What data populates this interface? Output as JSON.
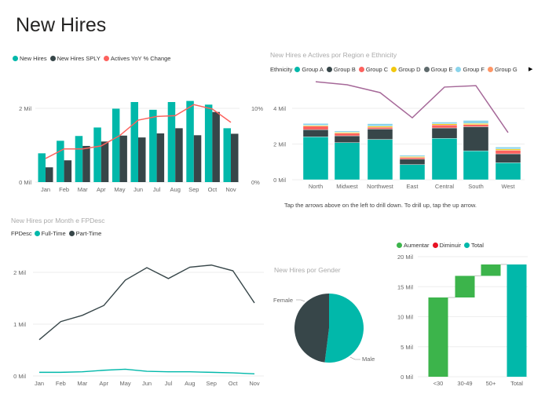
{
  "page_title": "New Hires",
  "colors": {
    "teal": "#01B8AA",
    "dark": "#374649",
    "red": "#FD625E",
    "yellow": "#F2C80F",
    "gray": "#5F6B6D",
    "lightblue": "#8AD4EB",
    "orange": "#FE9666",
    "purple": "#A66999",
    "green": "#3CB44B",
    "decrease": "#E81123"
  },
  "chart_data": [
    {
      "type": "bar",
      "title": "",
      "legend": [
        "New Hires",
        "New Hires SPLY",
        "Actives YoY % Change"
      ],
      "categories": [
        "Jan",
        "Feb",
        "Mar",
        "Apr",
        "May",
        "Jun",
        "Jul",
        "Aug",
        "Sep",
        "Oct",
        "Nov"
      ],
      "series": [
        {
          "name": "New Hires",
          "values": [
            0.78,
            1.12,
            1.25,
            1.48,
            1.99,
            2.17,
            1.96,
            2.17,
            2.2,
            2.1,
            1.46
          ]
        },
        {
          "name": "New Hires SPLY",
          "values": [
            0.4,
            0.59,
            0.98,
            1.1,
            1.26,
            1.21,
            1.32,
            1.46,
            1.27,
            1.9,
            1.31
          ]
        },
        {
          "name": "Actives YoY % Change",
          "type": "line",
          "axis": "right",
          "values": [
            3.2,
            4.5,
            4.5,
            4.9,
            6.3,
            8.4,
            8.9,
            9.0,
            10.5,
            9.9,
            8.1
          ]
        }
      ],
      "yticks": [
        "0 Mil",
        "2 Mil"
      ],
      "y2ticks": [
        "0%",
        "10%"
      ],
      "ylim": [
        0,
        2.4
      ],
      "y2lim": [
        0,
        12
      ],
      "grid": true,
      "legend_position": "top-left"
    },
    {
      "type": "bar",
      "stacked": true,
      "title": "New Hires e Actives por Region e Ethnicity",
      "legend_title": "Ethnicity",
      "legend": [
        "Group A",
        "Group B",
        "Group C",
        "Group D",
        "Group E",
        "Group F",
        "Group G"
      ],
      "categories": [
        "North",
        "Midwest",
        "Northwest",
        "East",
        "Central",
        "South",
        "West"
      ],
      "series": [
        {
          "name": "Group A",
          "values": [
            2.4,
            2.08,
            2.26,
            0.85,
            2.32,
            1.62,
            0.95
          ]
        },
        {
          "name": "Group B",
          "values": [
            0.4,
            0.38,
            0.58,
            0.3,
            0.58,
            1.35,
            0.5
          ]
        },
        {
          "name": "Group C",
          "values": [
            0.2,
            0.15,
            0.1,
            0.1,
            0.17,
            0.12,
            0.2
          ]
        },
        {
          "name": "Group D",
          "values": [
            0.05,
            0.05,
            0.06,
            0.05,
            0.06,
            0.06,
            0.07
          ]
        },
        {
          "name": "Group E",
          "values": [
            0,
            0,
            0,
            0,
            0,
            0,
            0
          ]
        },
        {
          "name": "Group F",
          "values": [
            0.1,
            0.07,
            0.14,
            0.07,
            0.1,
            0.17,
            0.11
          ]
        },
        {
          "name": "Group G",
          "values": [
            0,
            0,
            0,
            0,
            0,
            0,
            0
          ]
        },
        {
          "name": "Actives",
          "type": "line",
          "values": [
            5.49,
            5.32,
            4.88,
            3.47,
            5.19,
            5.27,
            2.64
          ]
        }
      ],
      "yticks": [
        "0 Mil",
        "2 Mil",
        "4 Mil"
      ],
      "ylim": [
        0,
        6
      ],
      "grid": true,
      "legend_position": "top-left",
      "note": "Tap the arrows above on the left to drill down. To drill up, tap the up arrow."
    },
    {
      "type": "line",
      "title": "New Hires por Month e FPDesc",
      "legend_title": "FPDesc",
      "legend": [
        "Full-Time",
        "Part-Time"
      ],
      "categories": [
        "Jan",
        "Feb",
        "Mar",
        "Apr",
        "May",
        "Jun",
        "Jul",
        "Aug",
        "Sep",
        "Oct",
        "Nov"
      ],
      "series": [
        {
          "name": "Full-Time",
          "values": [
            0.07,
            0.07,
            0.08,
            0.11,
            0.13,
            0.09,
            0.08,
            0.08,
            0.07,
            0.06,
            0.04
          ]
        },
        {
          "name": "Part-Time",
          "values": [
            0.7,
            1.05,
            1.17,
            1.36,
            1.85,
            2.09,
            1.88,
            2.1,
            2.14,
            2.03,
            1.41
          ]
        }
      ],
      "yticks": [
        "0 Mil",
        "1 Mil",
        "2 Mil"
      ],
      "ylim": [
        0,
        2.4
      ],
      "grid": true,
      "legend_position": "top-left"
    },
    {
      "type": "pie",
      "title": "New Hires por Gender",
      "labels": [
        "Male",
        "Female"
      ],
      "values": [
        52,
        48
      ]
    },
    {
      "type": "bar",
      "waterfall": true,
      "title": "",
      "legend": [
        "Aumentar",
        "Diminuir",
        "Total"
      ],
      "categories": [
        "<30",
        "30-49",
        "50+",
        "Total"
      ],
      "values": [
        13.2,
        3.6,
        1.9,
        18.7
      ],
      "yticks": [
        "0 Mil",
        "5 Mil",
        "10 Mil",
        "15 Mil",
        "20 Mil"
      ],
      "ylim": [
        0,
        20
      ],
      "grid": true,
      "legend_position": "top-left"
    }
  ]
}
